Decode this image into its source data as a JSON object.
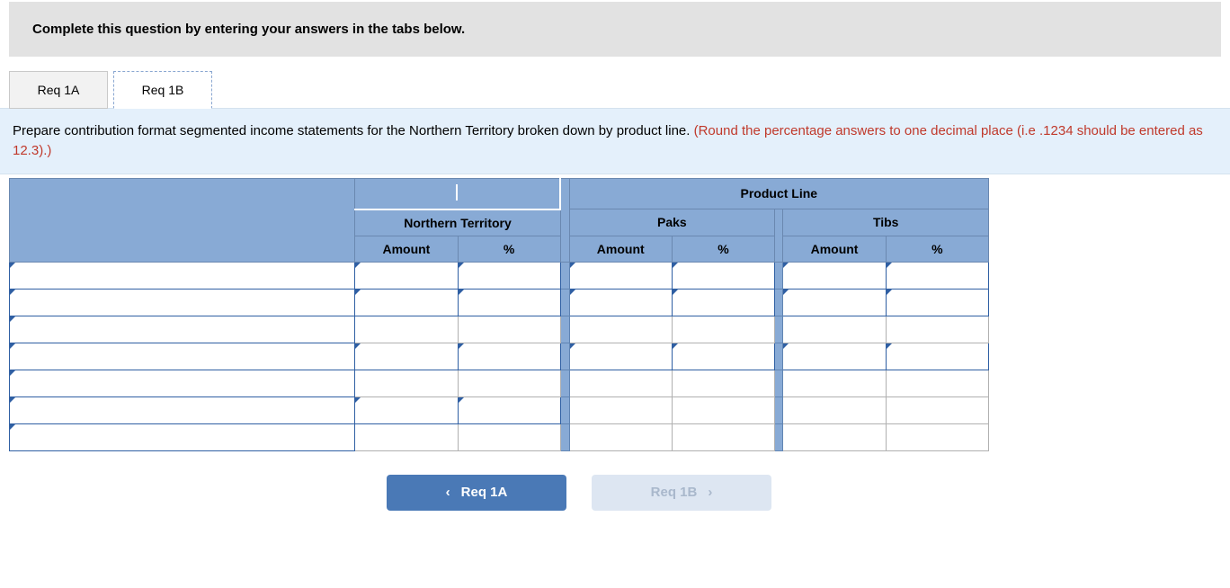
{
  "instruction": "Complete this question by entering your answers in the tabs below.",
  "tabs": {
    "a": "Req 1A",
    "b": "Req 1B"
  },
  "prompt": {
    "main": "Prepare contribution format segmented income statements for the Northern Territory broken down by product line. ",
    "hint": "(Round the percentage answers to one decimal place (i.e .1234 should be entered as 12.3).)"
  },
  "table": {
    "super_header": "Product Line",
    "group1": "Northern Territory",
    "group2": "Paks",
    "group3": "Tibs",
    "col_amount": "Amount",
    "col_pct": "%",
    "rows": 7,
    "editable_map": [
      [
        1,
        1,
        1,
        1,
        1,
        1,
        1
      ],
      [
        1,
        1,
        1,
        1,
        1,
        1,
        1
      ],
      [
        1,
        0,
        0,
        0,
        0,
        0,
        0
      ],
      [
        1,
        1,
        1,
        1,
        1,
        1,
        1
      ],
      [
        1,
        0,
        0,
        0,
        0,
        0,
        0
      ],
      [
        1,
        1,
        1,
        0,
        0,
        0,
        0
      ],
      [
        1,
        0,
        0,
        0,
        0,
        0,
        0
      ]
    ],
    "colors": {
      "header_bg": "#88aad5",
      "header_border": "#6a88b0",
      "edit_border": "#2f5fa3",
      "blank_border": "#b0b0b0",
      "band_bg": "#e4f0fb",
      "hint_color": "#c0392b",
      "prev_btn_bg": "#4a79b6",
      "next_btn_bg": "#dde6f2",
      "next_btn_fg": "#a9b8cc"
    }
  },
  "nav": {
    "prev": "Req 1A",
    "next": "Req 1B"
  }
}
